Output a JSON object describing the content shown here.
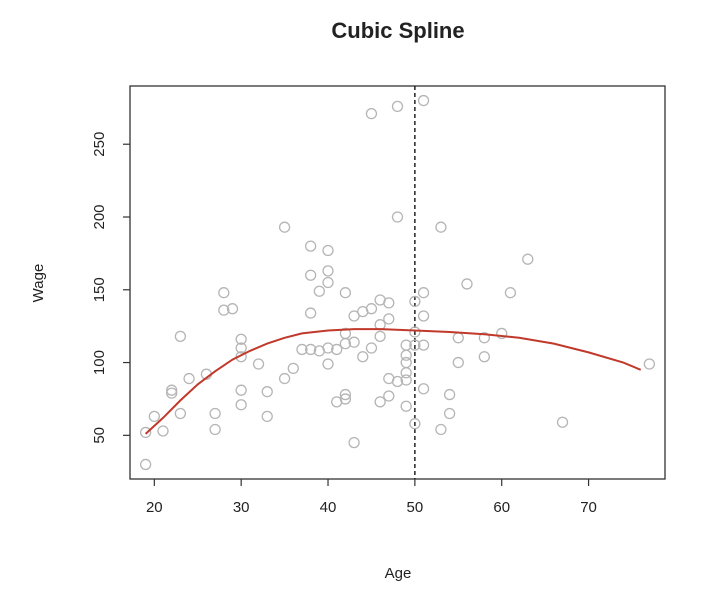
{
  "chart_data": {
    "type": "scatter",
    "title": "Cubic Spline",
    "xlabel": "Age",
    "ylabel": "Wage",
    "xlim": [
      17.2,
      78.8
    ],
    "ylim": [
      20,
      290
    ],
    "x_ticks": [
      20,
      30,
      40,
      50,
      60,
      70
    ],
    "y_ticks": [
      50,
      100,
      150,
      200,
      250
    ],
    "grid": false,
    "knot": {
      "x": 50,
      "style": "dashed",
      "color": "#222222"
    },
    "colors": {
      "points": "#b5b5b5",
      "curve": "#c0392b",
      "frame": "#333333"
    },
    "points": [
      {
        "x": 19,
        "y": 30
      },
      {
        "x": 19,
        "y": 52
      },
      {
        "x": 20,
        "y": 63
      },
      {
        "x": 21,
        "y": 53
      },
      {
        "x": 22,
        "y": 79
      },
      {
        "x": 22,
        "y": 81
      },
      {
        "x": 23,
        "y": 65
      },
      {
        "x": 23,
        "y": 118
      },
      {
        "x": 24,
        "y": 89
      },
      {
        "x": 26,
        "y": 92
      },
      {
        "x": 27,
        "y": 54
      },
      {
        "x": 27,
        "y": 65
      },
      {
        "x": 28,
        "y": 136
      },
      {
        "x": 28,
        "y": 148
      },
      {
        "x": 29,
        "y": 137
      },
      {
        "x": 30,
        "y": 71
      },
      {
        "x": 30,
        "y": 81
      },
      {
        "x": 30,
        "y": 104
      },
      {
        "x": 30,
        "y": 110
      },
      {
        "x": 30,
        "y": 116
      },
      {
        "x": 32,
        "y": 99
      },
      {
        "x": 33,
        "y": 63
      },
      {
        "x": 33,
        "y": 80
      },
      {
        "x": 35,
        "y": 89
      },
      {
        "x": 35,
        "y": 193
      },
      {
        "x": 36,
        "y": 96
      },
      {
        "x": 37,
        "y": 109
      },
      {
        "x": 38,
        "y": 109
      },
      {
        "x": 38,
        "y": 134
      },
      {
        "x": 38,
        "y": 160
      },
      {
        "x": 38,
        "y": 180
      },
      {
        "x": 39,
        "y": 108
      },
      {
        "x": 39,
        "y": 149
      },
      {
        "x": 40,
        "y": 99
      },
      {
        "x": 40,
        "y": 110
      },
      {
        "x": 40,
        "y": 155
      },
      {
        "x": 40,
        "y": 163
      },
      {
        "x": 40,
        "y": 177
      },
      {
        "x": 41,
        "y": 73
      },
      {
        "x": 41,
        "y": 109
      },
      {
        "x": 42,
        "y": 75
      },
      {
        "x": 42,
        "y": 78
      },
      {
        "x": 42,
        "y": 113
      },
      {
        "x": 42,
        "y": 120
      },
      {
        "x": 42,
        "y": 148
      },
      {
        "x": 43,
        "y": 45
      },
      {
        "x": 43,
        "y": 114
      },
      {
        "x": 43,
        "y": 132
      },
      {
        "x": 44,
        "y": 104
      },
      {
        "x": 44,
        "y": 135
      },
      {
        "x": 45,
        "y": 110
      },
      {
        "x": 45,
        "y": 137
      },
      {
        "x": 45,
        "y": 271
      },
      {
        "x": 46,
        "y": 73
      },
      {
        "x": 46,
        "y": 118
      },
      {
        "x": 46,
        "y": 126
      },
      {
        "x": 46,
        "y": 143
      },
      {
        "x": 47,
        "y": 77
      },
      {
        "x": 47,
        "y": 89
      },
      {
        "x": 47,
        "y": 130
      },
      {
        "x": 47,
        "y": 141
      },
      {
        "x": 48,
        "y": 87
      },
      {
        "x": 48,
        "y": 200
      },
      {
        "x": 48,
        "y": 276
      },
      {
        "x": 49,
        "y": 70
      },
      {
        "x": 49,
        "y": 88
      },
      {
        "x": 49,
        "y": 93
      },
      {
        "x": 49,
        "y": 100
      },
      {
        "x": 49,
        "y": 105
      },
      {
        "x": 49,
        "y": 112
      },
      {
        "x": 50,
        "y": 58
      },
      {
        "x": 50,
        "y": 112
      },
      {
        "x": 50,
        "y": 121
      },
      {
        "x": 50,
        "y": 142
      },
      {
        "x": 51,
        "y": 82
      },
      {
        "x": 51,
        "y": 112
      },
      {
        "x": 51,
        "y": 132
      },
      {
        "x": 51,
        "y": 148
      },
      {
        "x": 51,
        "y": 280
      },
      {
        "x": 53,
        "y": 54
      },
      {
        "x": 53,
        "y": 193
      },
      {
        "x": 54,
        "y": 65
      },
      {
        "x": 54,
        "y": 78
      },
      {
        "x": 55,
        "y": 117
      },
      {
        "x": 55,
        "y": 100
      },
      {
        "x": 56,
        "y": 154
      },
      {
        "x": 58,
        "y": 104
      },
      {
        "x": 58,
        "y": 117
      },
      {
        "x": 60,
        "y": 120
      },
      {
        "x": 61,
        "y": 148
      },
      {
        "x": 63,
        "y": 171
      },
      {
        "x": 67,
        "y": 59
      },
      {
        "x": 77,
        "y": 99
      }
    ],
    "curve": [
      {
        "x": 19,
        "y": 51
      },
      {
        "x": 21,
        "y": 62
      },
      {
        "x": 23,
        "y": 74
      },
      {
        "x": 25,
        "y": 85
      },
      {
        "x": 27,
        "y": 94
      },
      {
        "x": 29,
        "y": 102
      },
      {
        "x": 31,
        "y": 108
      },
      {
        "x": 33,
        "y": 113
      },
      {
        "x": 35,
        "y": 117
      },
      {
        "x": 37,
        "y": 120
      },
      {
        "x": 40,
        "y": 122
      },
      {
        "x": 43,
        "y": 123
      },
      {
        "x": 46,
        "y": 123
      },
      {
        "x": 50,
        "y": 122
      },
      {
        "x": 54,
        "y": 121
      },
      {
        "x": 58,
        "y": 119.5
      },
      {
        "x": 62,
        "y": 117
      },
      {
        "x": 66,
        "y": 113
      },
      {
        "x": 70,
        "y": 107
      },
      {
        "x": 74,
        "y": 100
      },
      {
        "x": 76,
        "y": 95
      }
    ]
  }
}
